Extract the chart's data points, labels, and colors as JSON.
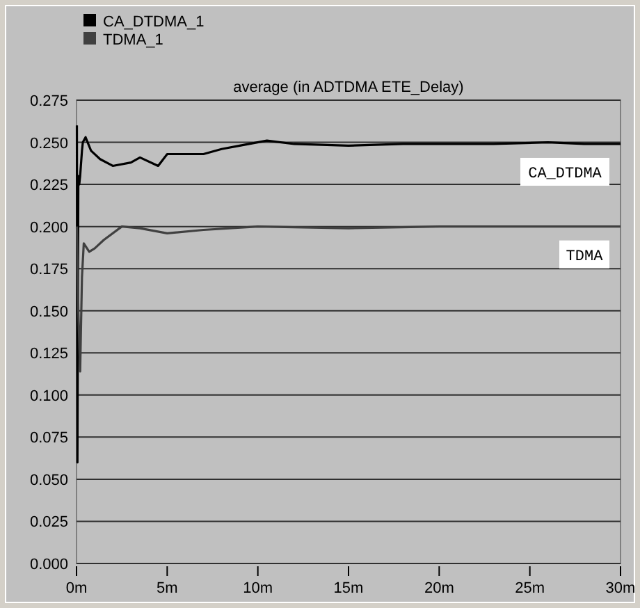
{
  "chart_data": {
    "type": "line",
    "title": "average (in ADTDMA ETE_Delay)",
    "legend": "top left",
    "grid": "y",
    "line_style": "solid",
    "xlim": [
      0,
      30
    ],
    "xticks": [
      {
        "value": 0,
        "label": "0m"
      },
      {
        "value": 5,
        "label": "5m"
      },
      {
        "value": 10,
        "label": "10m"
      },
      {
        "value": 15,
        "label": "15m"
      },
      {
        "value": 20,
        "label": "20m"
      },
      {
        "value": 25,
        "label": "25m"
      },
      {
        "value": 30,
        "label": "30m"
      }
    ],
    "ylim": [
      0,
      0.275
    ],
    "yticks": [
      {
        "value": 0,
        "label": "0.000"
      },
      {
        "value": 0.025,
        "label": "0.025"
      },
      {
        "value": 0.05,
        "label": "0.050"
      },
      {
        "value": 0.075,
        "label": "0.075"
      },
      {
        "value": 0.1,
        "label": "0.100"
      },
      {
        "value": 0.125,
        "label": "0.125"
      },
      {
        "value": 0.15,
        "label": "0.150"
      },
      {
        "value": 0.175,
        "label": "0.175"
      },
      {
        "value": 0.2,
        "label": "0.200"
      },
      {
        "value": 0.225,
        "label": "0.225"
      },
      {
        "value": 0.25,
        "label": "0.250"
      },
      {
        "value": 0.275,
        "label": "0.275"
      }
    ],
    "series": [
      {
        "name": "CA_DTDMA_1",
        "color": "#000000",
        "x": [
          0.02,
          0.05,
          0.1,
          0.15,
          0.2,
          0.3,
          0.35,
          0.5,
          0.8,
          1.3,
          2,
          3,
          3.5,
          4.5,
          5,
          7,
          8,
          9,
          10.5,
          12,
          15,
          18,
          20,
          23,
          26,
          28,
          30
        ],
        "values": [
          0.26,
          0.06,
          0.23,
          0.225,
          0.23,
          0.245,
          0.25,
          0.253,
          0.245,
          0.24,
          0.236,
          0.238,
          0.241,
          0.236,
          0.243,
          0.243,
          0.246,
          0.248,
          0.251,
          0.249,
          0.248,
          0.249,
          0.249,
          0.249,
          0.25,
          0.249,
          0.249
        ]
      },
      {
        "name": "TDMA_1",
        "color": "#404040",
        "x": [
          0.02,
          0.1,
          0.2,
          0.3,
          0.4,
          0.7,
          1,
          1.5,
          2.5,
          3.5,
          5,
          7,
          10,
          15,
          20,
          25,
          30
        ],
        "values": [
          0.2,
          0.15,
          0.114,
          0.17,
          0.19,
          0.185,
          0.187,
          0.192,
          0.2,
          0.199,
          0.196,
          0.198,
          0.2,
          0.199,
          0.2,
          0.2,
          0.2
        ]
      }
    ],
    "annotations": [
      "CA_DTDMA",
      "TDMA"
    ]
  }
}
